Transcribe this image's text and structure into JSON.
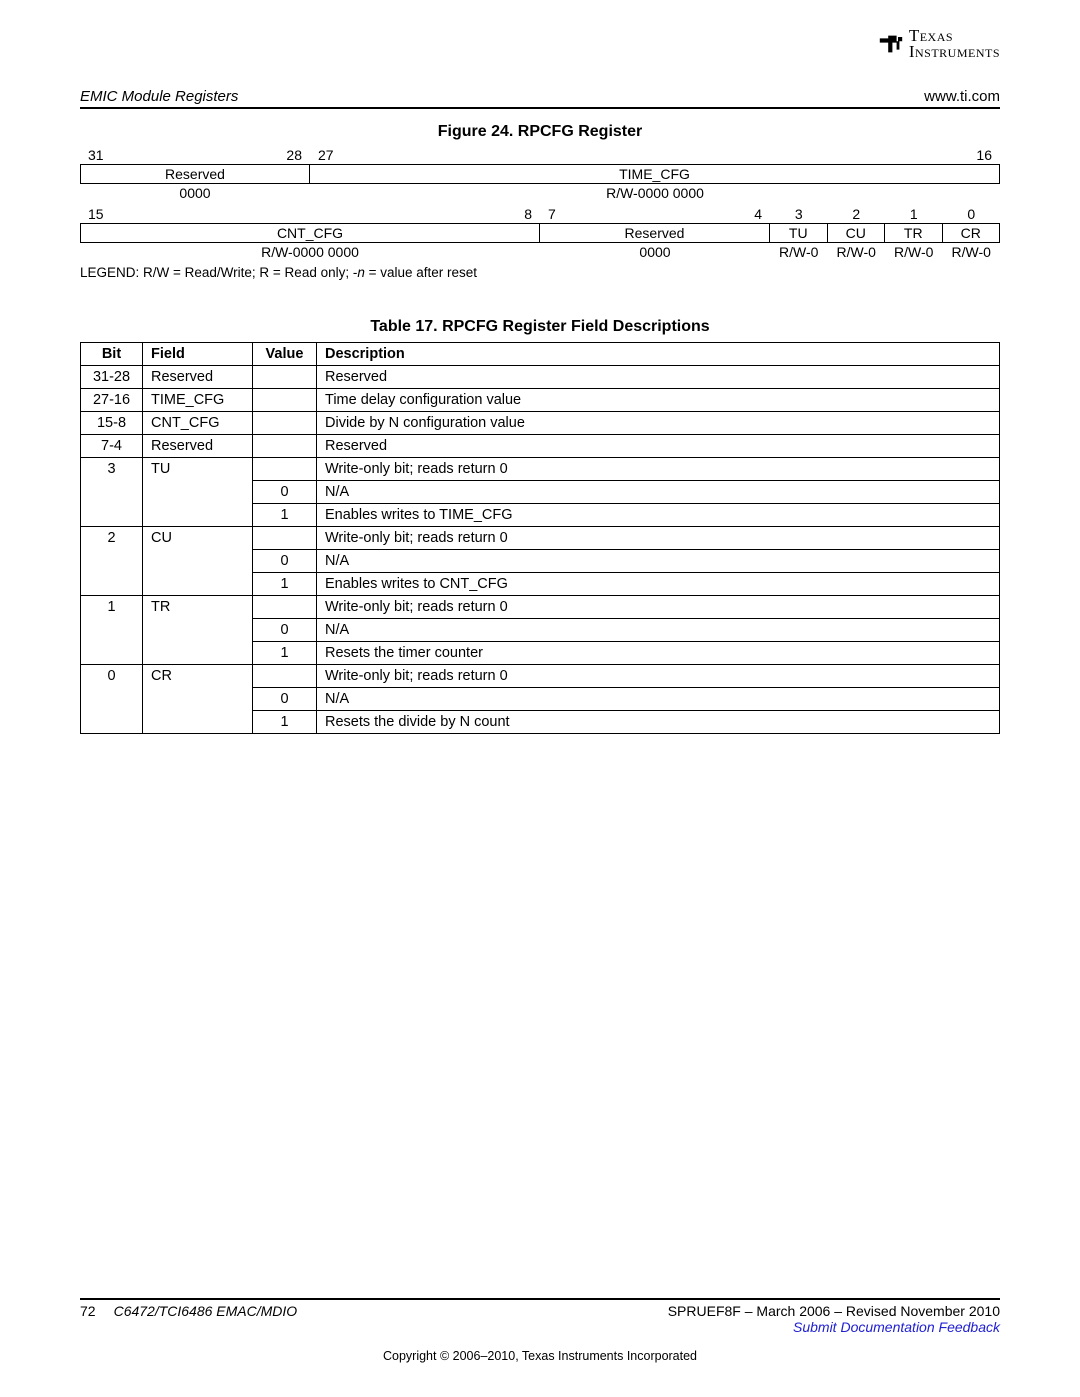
{
  "logo": {
    "line1": "Texas",
    "line2": "Instruments"
  },
  "header": {
    "left": "EMIC Module Registers",
    "right": "www.ti.com"
  },
  "figure": {
    "title": "Figure 24. RPCFG Register",
    "row1": {
      "bits": {
        "b31": "31",
        "b28": "28",
        "b27": "27",
        "b16": "16"
      },
      "fields": {
        "reserved": "Reserved",
        "time_cfg": "TIME_CFG"
      },
      "resets": {
        "reserved": "0000",
        "time_cfg": "R/W-0000 0000"
      }
    },
    "row2": {
      "bits": {
        "b15": "15",
        "b8": "8",
        "b7": "7",
        "b4": "4",
        "b3": "3",
        "b2": "2",
        "b1": "1",
        "b0": "0"
      },
      "fields": {
        "cnt_cfg": "CNT_CFG",
        "reserved": "Reserved",
        "tu": "TU",
        "cu": "CU",
        "tr": "TR",
        "cr": "CR"
      },
      "resets": {
        "cnt_cfg": "R/W-0000 0000",
        "reserved": "0000",
        "tu": "R/W-0",
        "cu": "R/W-0",
        "tr": "R/W-0",
        "cr": "R/W-0"
      }
    },
    "legend_prefix": "LEGEND: R/W = Read/Write; R = Read only; -",
    "legend_n": "n",
    "legend_suffix": " = value after reset"
  },
  "table": {
    "title": "Table 17. RPCFG Register Field Descriptions",
    "headers": {
      "bit": "Bit",
      "field": "Field",
      "value": "Value",
      "desc": "Description"
    },
    "rows": [
      {
        "bit": "31-28",
        "field": "Reserved",
        "value": "",
        "desc": "Reserved"
      },
      {
        "bit": "27-16",
        "field": "TIME_CFG",
        "value": "",
        "desc": "Time delay configuration value"
      },
      {
        "bit": "15-8",
        "field": "CNT_CFG",
        "value": "",
        "desc": "Divide by N configuration value"
      },
      {
        "bit": "7-4",
        "field": "Reserved",
        "value": "",
        "desc": "Reserved"
      },
      {
        "bit": "3",
        "field": "TU",
        "value": "",
        "desc": "Write-only bit; reads return 0"
      },
      {
        "bit": "",
        "field": "",
        "value": "0",
        "desc": "N/A"
      },
      {
        "bit": "",
        "field": "",
        "value": "1",
        "desc": "Enables writes to TIME_CFG"
      },
      {
        "bit": "2",
        "field": "CU",
        "value": "",
        "desc": "Write-only bit; reads return 0"
      },
      {
        "bit": "",
        "field": "",
        "value": "0",
        "desc": "N/A"
      },
      {
        "bit": "",
        "field": "",
        "value": "1",
        "desc": "Enables writes to CNT_CFG"
      },
      {
        "bit": "1",
        "field": "TR",
        "value": "",
        "desc": "Write-only bit; reads return 0"
      },
      {
        "bit": "",
        "field": "",
        "value": "0",
        "desc": "N/A"
      },
      {
        "bit": "",
        "field": "",
        "value": "1",
        "desc": "Resets the timer counter"
      },
      {
        "bit": "0",
        "field": "CR",
        "value": "",
        "desc": "Write-only bit; reads return 0"
      },
      {
        "bit": "",
        "field": "",
        "value": "0",
        "desc": "N/A"
      },
      {
        "bit": "",
        "field": "",
        "value": "1",
        "desc": "Resets the divide by N count"
      }
    ],
    "group_spans": [
      1,
      1,
      1,
      1,
      3,
      3,
      3,
      3
    ]
  },
  "footer": {
    "page": "72",
    "doc": "C6472/TCI6486 EMAC/MDIO",
    "rev": "SPRUEF8F – March 2006 – Revised November 2010",
    "link": "Submit Documentation Feedback",
    "copyright": "Copyright © 2006–2010, Texas Instruments Incorporated"
  }
}
